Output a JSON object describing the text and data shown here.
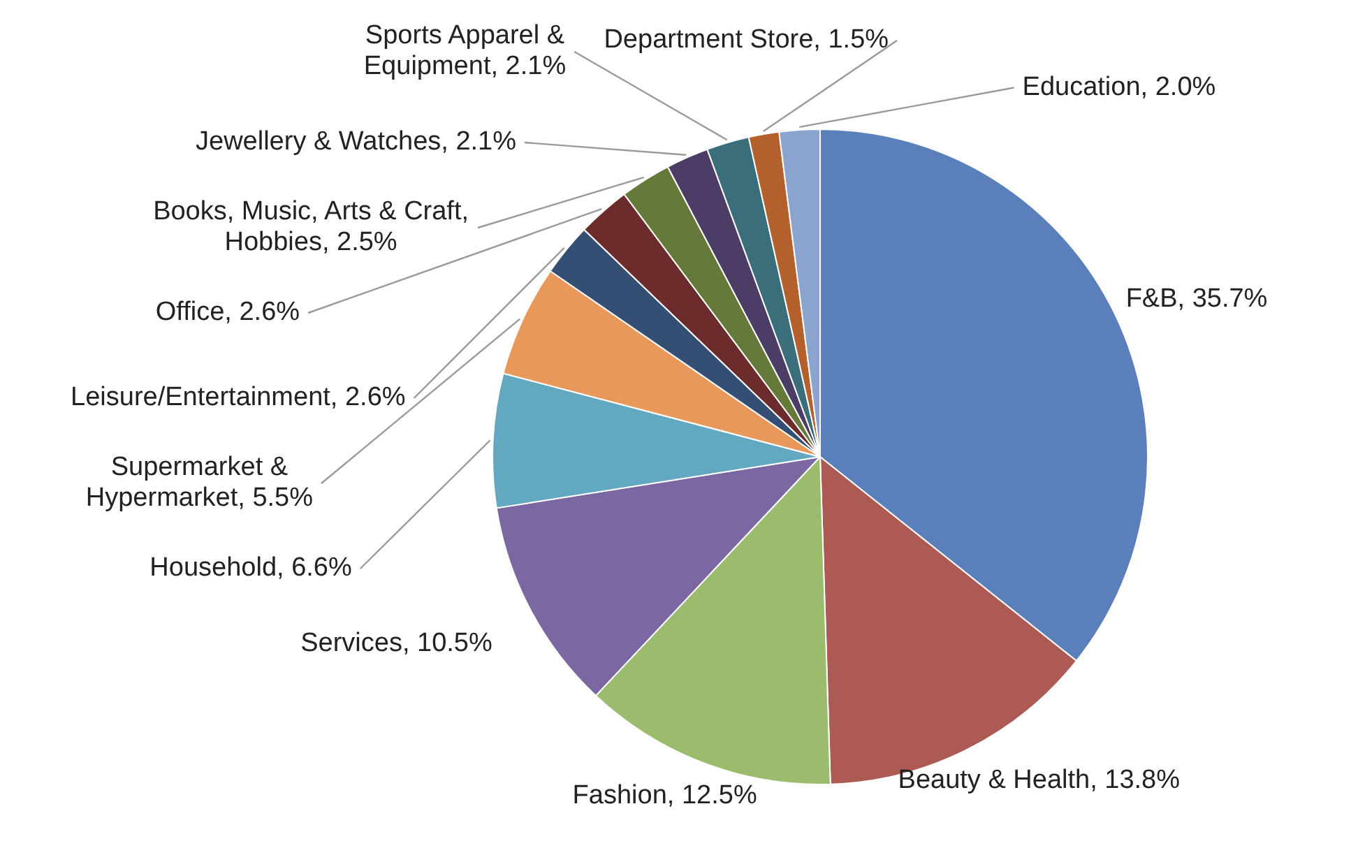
{
  "chart_data": {
    "type": "pie",
    "categories": [
      "F&B",
      "Beauty & Health",
      "Fashion",
      "Services",
      "Household",
      "Supermarket & Hypermarket",
      "Leisure/Entertainment",
      "Office",
      "Books, Music, Arts & Craft, Hobbies",
      "Jewellery & Watches",
      "Sports Apparel & Equipment",
      "Department Store",
      "Education"
    ],
    "values": [
      35.7,
      13.8,
      12.5,
      10.5,
      6.6,
      5.5,
      2.6,
      2.6,
      2.5,
      2.1,
      2.1,
      1.5,
      2.0
    ],
    "value_labels": [
      "35.7%",
      "13.8%",
      "12.5%",
      "10.5%",
      "6.6%",
      "5.5%",
      "2.6%",
      "2.6%",
      "2.5%",
      "2.1%",
      "2.1%",
      "1.5%",
      "2.0%"
    ],
    "colors": [
      "#5b7fbb",
      "#ad5a55",
      "#9bbb6d",
      "#7b68a3",
      "#62a8c0",
      "#e8985a",
      "#344f73",
      "#6b2c2b",
      "#657a3a",
      "#4c3d66",
      "#3a6e7a",
      "#b4602c",
      "#8aa4cf"
    ],
    "legend": false
  }
}
